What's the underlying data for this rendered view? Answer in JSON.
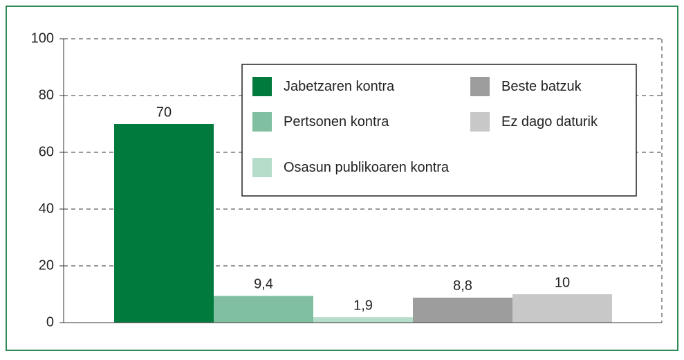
{
  "chart_data": {
    "type": "bar",
    "categories": [
      null
    ],
    "series": [
      {
        "name": "Jabetzaren kontra",
        "color": "#007a3d",
        "values": [
          70
        ],
        "value_labels": [
          "70"
        ]
      },
      {
        "name": "Pertsonen kontra",
        "color": "#80bf9f",
        "values": [
          9.4
        ],
        "value_labels": [
          "9,4"
        ]
      },
      {
        "name": "Osasun publikoaren kontra",
        "color": "#b5ddc9",
        "values": [
          1.9
        ],
        "value_labels": [
          "1,9"
        ]
      },
      {
        "name": "Beste batzuk",
        "color": "#9d9d9d",
        "values": [
          8.8
        ],
        "value_labels": [
          "8,8"
        ]
      },
      {
        "name": "Ez dago daturik",
        "color": "#c8c8c8",
        "values": [
          10
        ],
        "value_labels": [
          "10"
        ]
      }
    ],
    "ylim": [
      0,
      100
    ],
    "yticks": [
      0,
      20,
      40,
      60,
      80,
      100
    ],
    "grid": true,
    "legend": "top-right"
  }
}
